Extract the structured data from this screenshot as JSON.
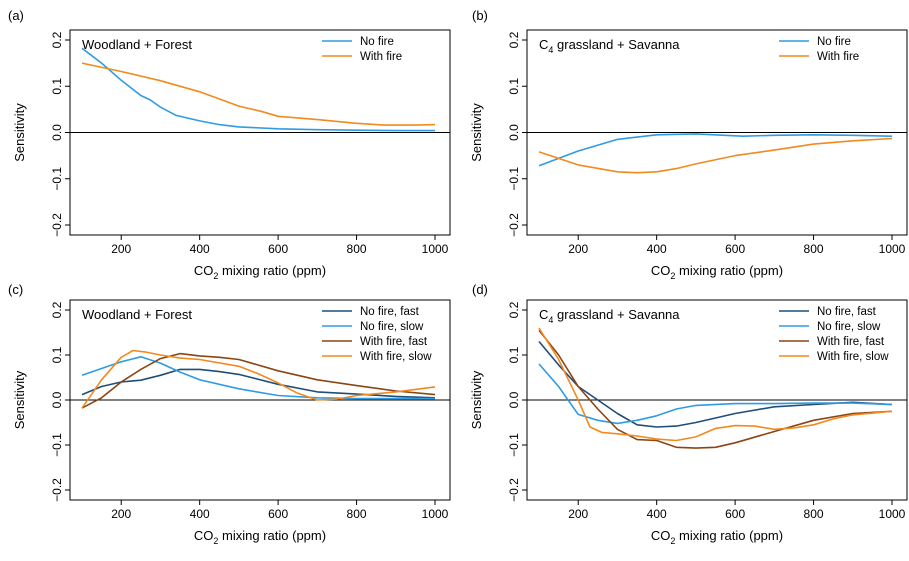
{
  "colors": {
    "light_blue": "#2f9be3",
    "orange": "#f28a1e",
    "dark_blue": "#1f4e79",
    "brown": "#8b4513",
    "axis": "#000000"
  },
  "chart_data": [
    {
      "type": "line",
      "panel_label": "(a)",
      "title": "Woodland + Forest",
      "xlabel": "CO",
      "xlabel_sub": "2",
      "xlabel_rest": " mixing ratio (ppm)",
      "ylabel": "Sensitivity",
      "xlim": [
        100,
        1000
      ],
      "ylim": [
        -0.2,
        0.2
      ],
      "xticks": [
        "200",
        "400",
        "600",
        "800",
        "1000"
      ],
      "yticks": [
        "-0.2",
        "-0.1",
        "0.0",
        "0.1",
        "0.2"
      ],
      "legend_position": "top-right",
      "series": [
        {
          "name": "No fire",
          "color_key": "light_blue",
          "x": [
            100,
            150,
            200,
            250,
            275,
            300,
            340,
            400,
            450,
            500,
            600,
            700,
            800,
            900,
            1000
          ],
          "values": [
            0.182,
            0.15,
            0.113,
            0.08,
            0.07,
            0.055,
            0.037,
            0.025,
            0.017,
            0.012,
            0.008,
            0.006,
            0.005,
            0.004,
            0.004
          ]
        },
        {
          "name": "With fire",
          "color_key": "orange",
          "x": [
            100,
            200,
            300,
            400,
            500,
            560,
            600,
            700,
            800,
            870,
            950,
            1000
          ],
          "values": [
            0.15,
            0.132,
            0.112,
            0.088,
            0.057,
            0.045,
            0.035,
            0.028,
            0.02,
            0.016,
            0.016,
            0.017
          ]
        }
      ]
    },
    {
      "type": "line",
      "panel_label": "(b)",
      "title": "C",
      "title_sub": "4",
      "title_rest": " grassland + Savanna",
      "xlabel": "CO",
      "xlabel_sub": "2",
      "xlabel_rest": " mixing ratio (ppm)",
      "ylabel": "Sensitivity",
      "xlim": [
        100,
        1000
      ],
      "ylim": [
        -0.2,
        0.2
      ],
      "xticks": [
        "200",
        "400",
        "600",
        "800",
        "1000"
      ],
      "yticks": [
        "-0.2",
        "-0.1",
        "0.0",
        "0.1",
        "0.2"
      ],
      "legend_position": "top-right",
      "series": [
        {
          "name": "No fire",
          "color_key": "light_blue",
          "x": [
            100,
            200,
            300,
            400,
            500,
            620,
            700,
            800,
            900,
            1000
          ],
          "values": [
            -0.072,
            -0.04,
            -0.015,
            -0.005,
            -0.003,
            -0.008,
            -0.006,
            -0.005,
            -0.006,
            -0.008
          ]
        },
        {
          "name": "With fire",
          "color_key": "orange",
          "x": [
            100,
            200,
            300,
            350,
            400,
            450,
            500,
            600,
            700,
            800,
            900,
            1000
          ],
          "values": [
            -0.042,
            -0.07,
            -0.085,
            -0.087,
            -0.085,
            -0.078,
            -0.068,
            -0.05,
            -0.038,
            -0.025,
            -0.018,
            -0.013
          ]
        }
      ]
    },
    {
      "type": "line",
      "panel_label": "(c)",
      "title": "Woodland + Forest",
      "xlabel": "CO",
      "xlabel_sub": "2",
      "xlabel_rest": " mixing ratio (ppm)",
      "ylabel": "Sensitivity",
      "xlim": [
        100,
        1000
      ],
      "ylim": [
        -0.2,
        0.2
      ],
      "xticks": [
        "200",
        "400",
        "600",
        "800",
        "1000"
      ],
      "yticks": [
        "-0.2",
        "-0.1",
        "0.0",
        "0.1",
        "0.2"
      ],
      "legend_position": "top-right",
      "series": [
        {
          "name": "No fire, fast",
          "color_key": "dark_blue",
          "x": [
            100,
            150,
            200,
            250,
            300,
            350,
            400,
            450,
            500,
            600,
            700,
            800,
            900,
            1000
          ],
          "values": [
            0.012,
            0.03,
            0.04,
            0.044,
            0.055,
            0.068,
            0.068,
            0.063,
            0.057,
            0.035,
            0.018,
            0.013,
            0.008,
            0.005
          ]
        },
        {
          "name": "No fire, slow",
          "color_key": "light_blue",
          "x": [
            100,
            200,
            250,
            300,
            350,
            400,
            500,
            600,
            700,
            800,
            900,
            1000
          ],
          "values": [
            0.055,
            0.085,
            0.096,
            0.082,
            0.062,
            0.045,
            0.025,
            0.01,
            0.005,
            0.003,
            0.003,
            0.003
          ]
        },
        {
          "name": "With fire, fast",
          "color_key": "brown",
          "x": [
            100,
            150,
            200,
            250,
            300,
            350,
            400,
            450,
            500,
            600,
            700,
            800,
            900,
            1000
          ],
          "values": [
            -0.018,
            0.005,
            0.04,
            0.068,
            0.092,
            0.103,
            0.098,
            0.095,
            0.09,
            0.065,
            0.045,
            0.032,
            0.02,
            0.012
          ]
        },
        {
          "name": "With fire, slow",
          "color_key": "orange",
          "x": [
            100,
            150,
            200,
            230,
            260,
            300,
            350,
            400,
            500,
            550,
            600,
            650,
            700,
            750,
            800,
            900,
            1000
          ],
          "values": [
            -0.018,
            0.045,
            0.095,
            0.11,
            0.107,
            0.1,
            0.093,
            0.09,
            0.075,
            0.058,
            0.038,
            0.015,
            0.0,
            0.002,
            0.01,
            0.018,
            0.029
          ]
        }
      ]
    },
    {
      "type": "line",
      "panel_label": "(d)",
      "title": "C",
      "title_sub": "4",
      "title_rest": " grassland + Savanna",
      "xlabel": "CO",
      "xlabel_sub": "2",
      "xlabel_rest": " mixing ratio (ppm)",
      "ylabel": "Sensitivity",
      "xlim": [
        100,
        1000
      ],
      "ylim": [
        -0.2,
        0.2
      ],
      "xticks": [
        "200",
        "400",
        "600",
        "800",
        "1000"
      ],
      "yticks": [
        "-0.2",
        "-0.1",
        "0.0",
        "0.1",
        "0.2"
      ],
      "legend_position": "top-right",
      "series": [
        {
          "name": "No fire, fast",
          "color_key": "dark_blue",
          "x": [
            100,
            150,
            200,
            250,
            300,
            350,
            400,
            450,
            500,
            600,
            700,
            800,
            900,
            1000
          ],
          "values": [
            0.13,
            0.078,
            0.03,
            0.0,
            -0.03,
            -0.055,
            -0.06,
            -0.058,
            -0.05,
            -0.03,
            -0.015,
            -0.01,
            -0.005,
            -0.01
          ]
        },
        {
          "name": "No fire, slow",
          "color_key": "light_blue",
          "x": [
            100,
            150,
            200,
            250,
            300,
            350,
            400,
            450,
            500,
            600,
            700,
            800,
            900,
            1000
          ],
          "values": [
            0.08,
            0.03,
            -0.032,
            -0.045,
            -0.052,
            -0.045,
            -0.035,
            -0.02,
            -0.012,
            -0.008,
            -0.008,
            -0.007,
            -0.007,
            -0.01
          ]
        },
        {
          "name": "With fire, fast",
          "color_key": "brown",
          "x": [
            100,
            150,
            200,
            250,
            300,
            350,
            400,
            450,
            500,
            550,
            600,
            700,
            800,
            900,
            1000
          ],
          "values": [
            0.155,
            0.1,
            0.03,
            -0.02,
            -0.065,
            -0.088,
            -0.09,
            -0.105,
            -0.107,
            -0.105,
            -0.095,
            -0.07,
            -0.045,
            -0.03,
            -0.025
          ]
        },
        {
          "name": "With fire, slow",
          "color_key": "orange",
          "x": [
            100,
            150,
            200,
            230,
            260,
            300,
            350,
            400,
            450,
            500,
            550,
            600,
            650,
            700,
            750,
            800,
            850,
            900,
            1000
          ],
          "values": [
            0.16,
            0.09,
            0.0,
            -0.06,
            -0.072,
            -0.075,
            -0.08,
            -0.087,
            -0.09,
            -0.082,
            -0.063,
            -0.057,
            -0.058,
            -0.065,
            -0.062,
            -0.055,
            -0.042,
            -0.033,
            -0.025
          ]
        }
      ]
    }
  ]
}
